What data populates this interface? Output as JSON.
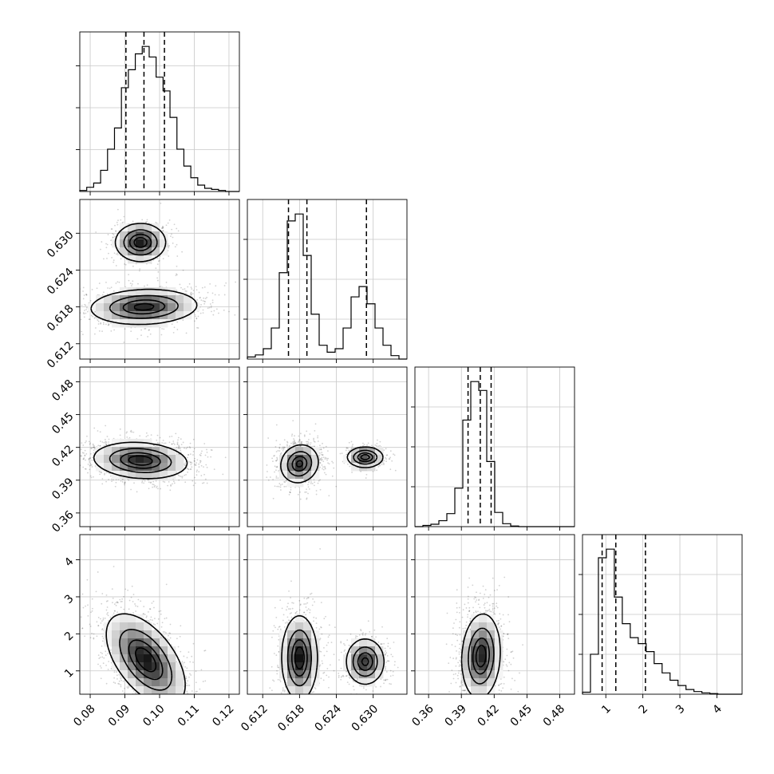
{
  "chart_data": {
    "type": "corner",
    "title": "",
    "parameters": [
      {
        "range": [
          0.077,
          0.123
        ],
        "ticks": [
          0.08,
          0.09,
          0.1,
          0.11,
          0.12
        ],
        "tick_labels": [
          "0.08",
          "0.09",
          "0.10",
          "0.11",
          "0.12"
        ]
      },
      {
        "range": [
          0.6095,
          0.6355
        ],
        "ticks": [
          0.612,
          0.618,
          0.624,
          0.63
        ],
        "tick_labels": [
          "0.612",
          "0.618",
          "0.624",
          "0.630"
        ]
      },
      {
        "range": [
          0.3475,
          0.4935
        ],
        "ticks": [
          0.36,
          0.39,
          0.42,
          0.45,
          0.48
        ],
        "tick_labels": [
          "0.36",
          "0.39",
          "0.42",
          "0.45",
          "0.48"
        ]
      },
      {
        "range": [
          0.37,
          4.68
        ],
        "ticks": [
          1,
          2,
          3,
          4
        ],
        "tick_labels": [
          "1",
          "2",
          "3",
          "4"
        ]
      }
    ],
    "histograms": [
      {
        "bin_edges": [
          0.077,
          0.079,
          0.081,
          0.083,
          0.085,
          0.087,
          0.089,
          0.091,
          0.093,
          0.095,
          0.097,
          0.099,
          0.101,
          0.103,
          0.105,
          0.107,
          0.109,
          0.111,
          0.113,
          0.115,
          0.117,
          0.119,
          0.121,
          0.123
        ],
        "counts": [
          1,
          4,
          8,
          20,
          40,
          60,
          98,
          115,
          130,
          137,
          127,
          108,
          95,
          70,
          40,
          24,
          13,
          6,
          3,
          2,
          1,
          0,
          0
        ],
        "quantiles": [
          0.0903,
          0.0955,
          0.1014
        ]
      },
      {
        "bin_edges": [
          0.6095,
          0.6108,
          0.6121,
          0.6134,
          0.6147,
          0.616,
          0.6173,
          0.6186,
          0.6199,
          0.6212,
          0.6225,
          0.6238,
          0.6251,
          0.6264,
          0.6277,
          0.629,
          0.6303,
          0.6316,
          0.6329,
          0.6342,
          0.6355
        ],
        "counts": [
          3,
          6,
          15,
          45,
          125,
          200,
          210,
          150,
          65,
          20,
          10,
          15,
          45,
          90,
          105,
          80,
          45,
          20,
          5,
          0
        ],
        "quantiles": [
          0.6162,
          0.6192,
          0.6289
        ]
      },
      {
        "bin_edges": [
          0.3475,
          0.3548,
          0.3621,
          0.3694,
          0.3767,
          0.384,
          0.3913,
          0.3986,
          0.4059,
          0.4132,
          0.4205,
          0.4278,
          0.4351,
          0.4424,
          0.4497,
          0.457,
          0.4643,
          0.4716,
          0.4789,
          0.4862,
          0.4935
        ],
        "counts": [
          0,
          2,
          4,
          10,
          22,
          65,
          180,
          245,
          230,
          110,
          24,
          5,
          1,
          0,
          0,
          0,
          0,
          0,
          0,
          0
        ],
        "quantiles": [
          0.3961,
          0.4073,
          0.4172
        ]
      },
      {
        "bin_edges": [
          0.37,
          0.585,
          0.8,
          1.015,
          1.23,
          1.445,
          1.66,
          1.875,
          2.09,
          2.305,
          2.52,
          2.735,
          2.95,
          3.165,
          3.38,
          3.595,
          3.81,
          4.025,
          4.24,
          4.455,
          4.68
        ],
        "counts": [
          3,
          60,
          205,
          218,
          146,
          106,
          85,
          76,
          64,
          46,
          32,
          21,
          13,
          7,
          4,
          2,
          1,
          0,
          0,
          0
        ],
        "quantiles": [
          0.9,
          1.27,
          2.07
        ]
      }
    ],
    "contour_levels": [
      0.118,
      0.393,
      0.675,
      0.865
    ],
    "panels": [
      {
        "row": 1,
        "col": 0,
        "components": [
          {
            "mean": [
              0.0945,
              0.6285
            ],
            "sd": [
              0.0035,
              0.0015
            ],
            "rho": 0,
            "weight": 0.35
          },
          {
            "mean": [
              0.0955,
              0.618
            ],
            "sd": [
              0.0075,
              0.0014
            ],
            "rho": 0.1,
            "weight": 0.65
          }
        ]
      },
      {
        "row": 2,
        "col": 0,
        "components": [
          {
            "mean": [
              0.0945,
              0.408
            ],
            "sd": [
              0.0065,
              0.008
            ],
            "rho": -0.15,
            "weight": 1.0
          }
        ]
      },
      {
        "row": 2,
        "col": 1,
        "components": [
          {
            "mean": [
              0.618,
              0.405
            ],
            "sd": [
              0.0015,
              0.0085
            ],
            "rho": 0.1,
            "weight": 0.65
          },
          {
            "mean": [
              0.6287,
              0.411
            ],
            "sd": [
              0.0014,
              0.0045
            ],
            "rho": 0,
            "weight": 0.35
          }
        ]
      },
      {
        "row": 3,
        "col": 0,
        "components": [
          {
            "mean": [
              0.096,
              1.3
            ],
            "sd": [
              0.0055,
              0.6
            ],
            "rho": -0.55,
            "weight": 1.0
          }
        ]
      },
      {
        "row": 3,
        "col": 1,
        "components": [
          {
            "mean": [
              0.618,
              1.35
            ],
            "sd": [
              0.0014,
              0.55
            ],
            "rho": 0,
            "weight": 0.65
          },
          {
            "mean": [
              0.6287,
              1.25
            ],
            "sd": [
              0.0015,
              0.3
            ],
            "rho": 0,
            "weight": 0.35
          }
        ]
      },
      {
        "row": 3,
        "col": 2,
        "components": [
          {
            "mean": [
              0.408,
              1.4
            ],
            "sd": [
              0.0085,
              0.55
            ],
            "rho": 0.1,
            "weight": 1.0
          }
        ]
      }
    ],
    "grid": true,
    "legend": "none",
    "colors": {
      "ink": "#000000",
      "grid": "#c8c8c8",
      "background": "#ffffff"
    }
  }
}
